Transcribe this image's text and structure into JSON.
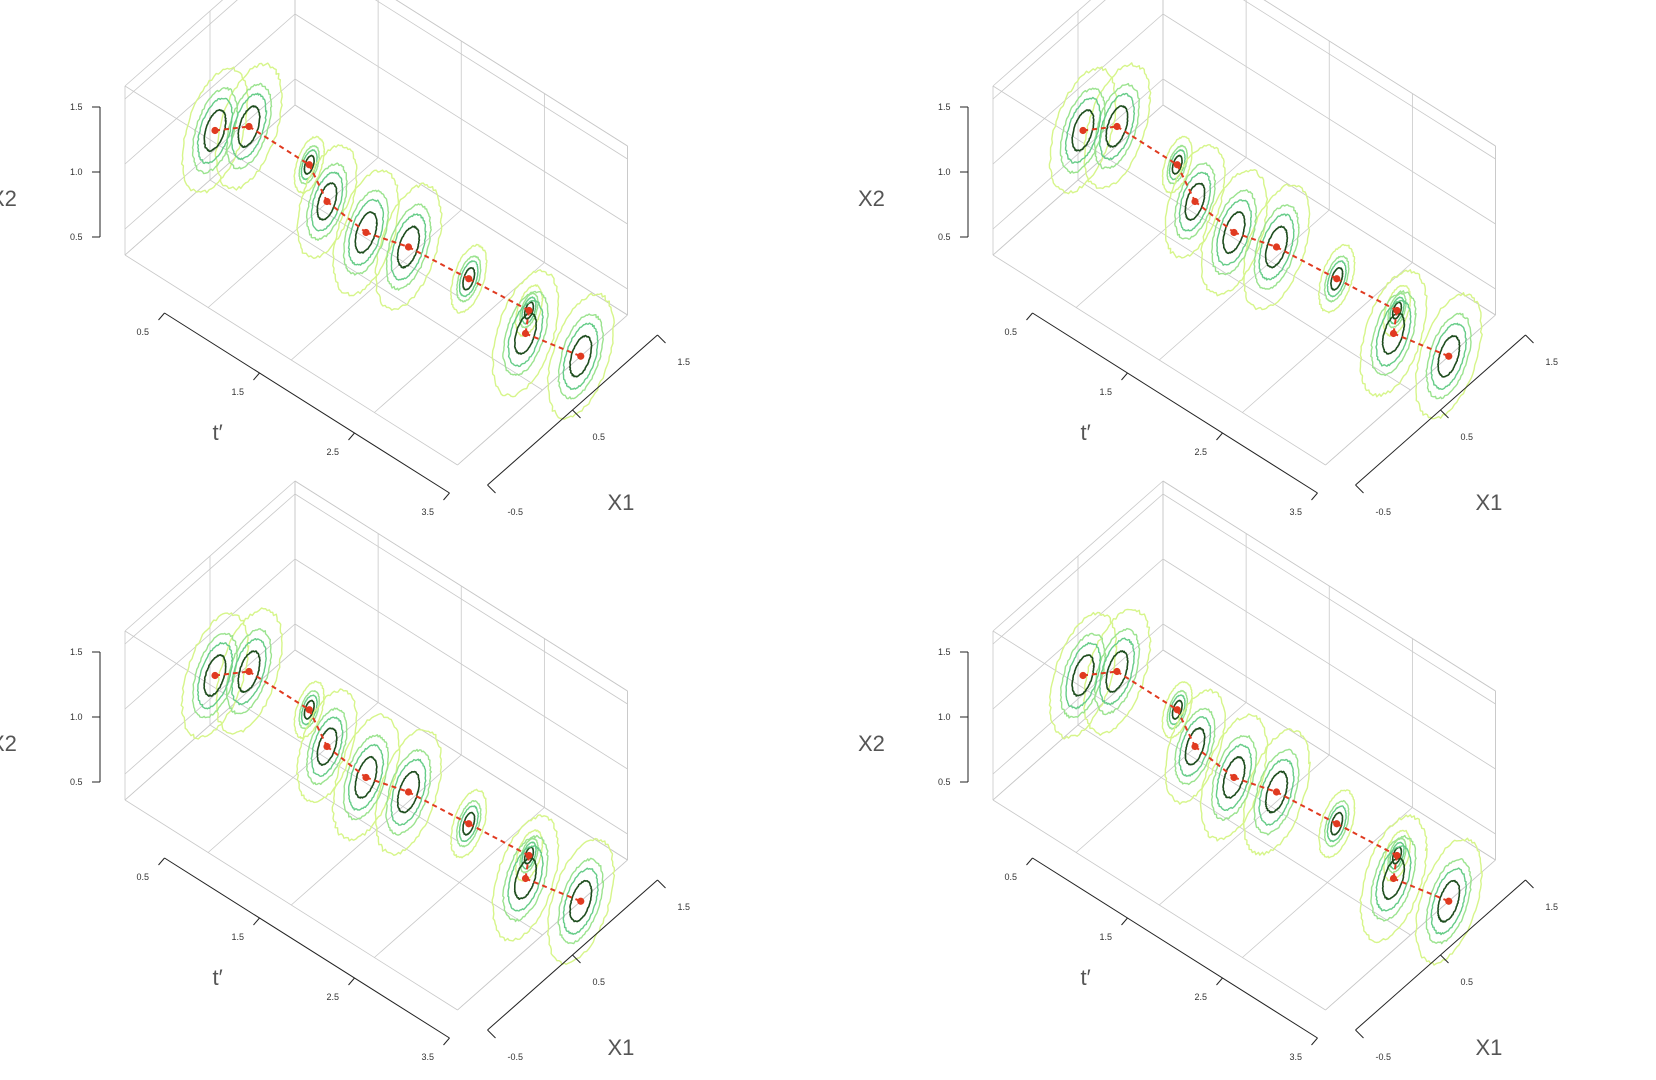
{
  "colors": {
    "background": "#ffffff",
    "grid": "#c8c8c8",
    "axis": "#222222",
    "contour_outer": "#d6f58a",
    "contour_mid_outer": "#9be38f",
    "contour_mid_inner": "#66cc88",
    "contour_inner": "#1e4d1e",
    "mode_path": "#e03a20",
    "mode_point": "#e03a20"
  },
  "chart_data": [
    {
      "type": "3d-contour",
      "panel": "top-left",
      "axes": {
        "t": {
          "label": "t′",
          "ticks": [
            "0.5",
            "1.5",
            "2.5",
            "3.5"
          ],
          "range": [
            0,
            3.5
          ]
        },
        "x1": {
          "label": "X1",
          "ticks": [
            "-0.5",
            "0.5",
            "1.5"
          ],
          "range": [
            -0.5,
            1.5
          ]
        },
        "x2": {
          "label": "X2",
          "ticks": [
            "0.5",
            "1.0",
            "1.5"
          ],
          "range": [
            0.3,
            1.6
          ]
        }
      },
      "grid": true,
      "contour_levels": [
        "outer",
        "mid-outer",
        "mid-inner",
        "inner"
      ],
      "slices": [
        {
          "t": 0.5,
          "modes": [
            {
              "x1": 0.0,
              "x2": 1.2
            },
            {
              "x1": 0.4,
              "x2": 1.0
            }
          ]
        },
        {
          "t": 1.0,
          "modes": [
            {
              "x1": 0.55,
              "x2": 0.85
            }
          ]
        },
        {
          "t": 1.5,
          "modes": [
            {
              "x1": 0.2,
              "x2": 1.0
            }
          ]
        },
        {
          "t": 2.0,
          "modes": [
            {
              "x1": 0.1,
              "x2": 1.05
            },
            {
              "x1": 0.6,
              "x2": 0.65
            }
          ]
        },
        {
          "t": 2.5,
          "modes": [
            {
              "x1": 0.75,
              "x2": 0.55
            }
          ]
        },
        {
          "t": 3.0,
          "modes": [
            {
              "x1": 0.9,
              "x2": 0.45
            }
          ]
        },
        {
          "t": 3.5,
          "modes": [
            {
              "x1": 0.3,
              "x2": 0.85
            },
            {
              "x1": 0.95,
              "x2": 0.3
            }
          ]
        }
      ]
    },
    {
      "type": "3d-contour",
      "panel": "top-right",
      "axes": {
        "t": {
          "label": "t′",
          "ticks": [
            "0.5",
            "1.5",
            "2.5",
            "3.5"
          ],
          "range": [
            0,
            3.5
          ]
        },
        "x1": {
          "label": "X1",
          "ticks": [
            "-0.5",
            "0.5",
            "1.5"
          ],
          "range": [
            -0.5,
            1.5
          ]
        },
        "x2": {
          "label": "X2",
          "ticks": [
            "0.5",
            "1.0",
            "1.5"
          ],
          "range": [
            0.3,
            1.6
          ]
        }
      },
      "grid": true,
      "contour_levels": [
        "outer",
        "mid-outer",
        "mid-inner",
        "inner"
      ],
      "slices": [
        {
          "t": 0.5,
          "modes": [
            {
              "x1": 0.0,
              "x2": 1.2
            },
            {
              "x1": 0.4,
              "x2": 1.0
            }
          ]
        },
        {
          "t": 1.0,
          "modes": [
            {
              "x1": 0.55,
              "x2": 0.85
            }
          ]
        },
        {
          "t": 1.5,
          "modes": [
            {
              "x1": 0.2,
              "x2": 1.0
            }
          ]
        },
        {
          "t": 2.0,
          "modes": [
            {
              "x1": 0.1,
              "x2": 1.05
            },
            {
              "x1": 0.6,
              "x2": 0.65
            }
          ]
        },
        {
          "t": 2.5,
          "modes": [
            {
              "x1": 0.75,
              "x2": 0.55
            }
          ]
        },
        {
          "t": 3.0,
          "modes": [
            {
              "x1": 0.9,
              "x2": 0.45
            }
          ]
        },
        {
          "t": 3.5,
          "modes": [
            {
              "x1": 0.3,
              "x2": 0.85
            },
            {
              "x1": 0.95,
              "x2": 0.3
            }
          ]
        }
      ]
    },
    {
      "type": "3d-contour",
      "panel": "bottom-left",
      "axes": {
        "t": {
          "label": "t′",
          "ticks": [
            "0.5",
            "1.5",
            "2.5",
            "3.5"
          ],
          "range": [
            0,
            3.5
          ]
        },
        "x1": {
          "label": "X1",
          "ticks": [
            "-0.5",
            "0.5",
            "1.5"
          ],
          "range": [
            -0.5,
            1.5
          ]
        },
        "x2": {
          "label": "X2",
          "ticks": [
            "0.5",
            "1.0",
            "1.5"
          ],
          "range": [
            0.3,
            1.6
          ]
        }
      },
      "grid": true,
      "contour_levels": [
        "outer",
        "mid-outer",
        "mid-inner",
        "inner"
      ],
      "slices": [
        {
          "t": 0.5,
          "modes": [
            {
              "x1": 0.0,
              "x2": 1.2
            },
            {
              "x1": 0.4,
              "x2": 1.0
            }
          ]
        },
        {
          "t": 1.0,
          "modes": [
            {
              "x1": 0.55,
              "x2": 0.85
            }
          ]
        },
        {
          "t": 1.5,
          "modes": [
            {
              "x1": 0.2,
              "x2": 1.0
            }
          ]
        },
        {
          "t": 2.0,
          "modes": [
            {
              "x1": 0.1,
              "x2": 1.05
            },
            {
              "x1": 0.6,
              "x2": 0.65
            }
          ]
        },
        {
          "t": 2.5,
          "modes": [
            {
              "x1": 0.75,
              "x2": 0.55
            }
          ]
        },
        {
          "t": 3.0,
          "modes": [
            {
              "x1": 0.9,
              "x2": 0.45
            }
          ]
        },
        {
          "t": 3.5,
          "modes": [
            {
              "x1": 0.3,
              "x2": 0.85
            },
            {
              "x1": 0.95,
              "x2": 0.3
            }
          ]
        }
      ]
    },
    {
      "type": "3d-contour",
      "panel": "bottom-right",
      "axes": {
        "t": {
          "label": "t′",
          "ticks": [
            "0.5",
            "1.5",
            "2.5",
            "3.5"
          ],
          "range": [
            0,
            3.5
          ]
        },
        "x1": {
          "label": "X1",
          "ticks": [
            "-0.5",
            "0.5",
            "1.5"
          ],
          "range": [
            -0.5,
            1.5
          ]
        },
        "x2": {
          "label": "X2",
          "ticks": [
            "0.5",
            "1.0",
            "1.5"
          ],
          "range": [
            0.3,
            1.6
          ]
        }
      },
      "grid": true,
      "contour_levels": [
        "outer",
        "mid-outer",
        "mid-inner",
        "inner"
      ],
      "slices": [
        {
          "t": 0.5,
          "modes": [
            {
              "x1": 0.0,
              "x2": 1.2
            },
            {
              "x1": 0.4,
              "x2": 1.0
            }
          ]
        },
        {
          "t": 1.0,
          "modes": [
            {
              "x1": 0.55,
              "x2": 0.85
            }
          ]
        },
        {
          "t": 1.5,
          "modes": [
            {
              "x1": 0.2,
              "x2": 1.0
            }
          ]
        },
        {
          "t": 2.0,
          "modes": [
            {
              "x1": 0.1,
              "x2": 1.05
            },
            {
              "x1": 0.6,
              "x2": 0.65
            }
          ]
        },
        {
          "t": 2.5,
          "modes": [
            {
              "x1": 0.75,
              "x2": 0.55
            }
          ]
        },
        {
          "t": 3.0,
          "modes": [
            {
              "x1": 0.9,
              "x2": 0.45
            }
          ]
        },
        {
          "t": 3.5,
          "modes": [
            {
              "x1": 0.3,
              "x2": 0.85
            },
            {
              "x1": 0.95,
              "x2": 0.3
            }
          ]
        }
      ]
    }
  ]
}
